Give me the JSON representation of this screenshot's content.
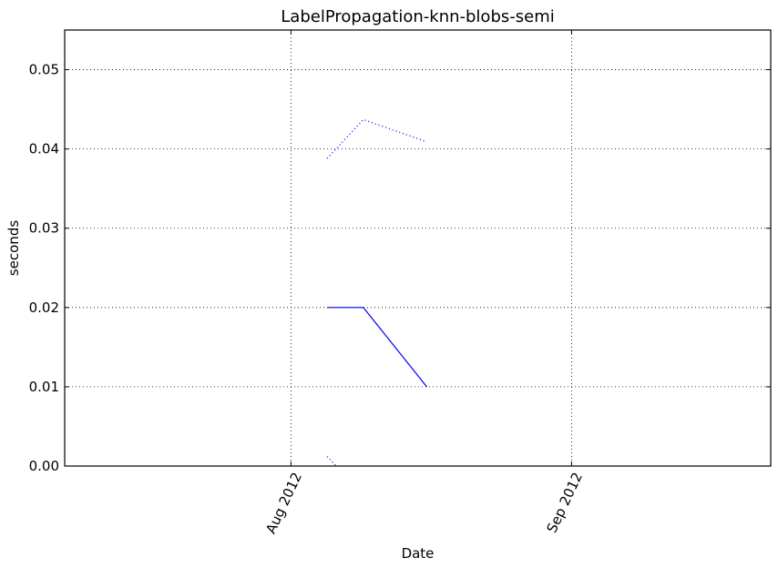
{
  "chart_data": {
    "type": "line",
    "title": "LabelPropagation-knn-blobs-semi",
    "xlabel": "Date",
    "ylabel": "seconds",
    "x_type": "date",
    "xlim": [
      "2012-07-07",
      "2012-09-23"
    ],
    "ylim": [
      0,
      0.055
    ],
    "yticks": [
      0.0,
      0.01,
      0.02,
      0.03,
      0.04,
      0.05
    ],
    "ytick_labels": [
      "0.00",
      "0.01",
      "0.02",
      "0.03",
      "0.04",
      "0.05"
    ],
    "xticks": [
      "2012-08-01",
      "2012-09-01"
    ],
    "xtick_labels": [
      "Aug 2012",
      "Sep 2012"
    ],
    "grid": true,
    "color": "#0000ff",
    "series": [
      {
        "style": "solid",
        "x": [
          "2012-08-05",
          "2012-08-09",
          "2012-08-16"
        ],
        "y": [
          0.02,
          0.02,
          0.01
        ]
      },
      {
        "style": "dotted",
        "x": [
          "2012-08-05",
          "2012-08-09",
          "2012-08-16"
        ],
        "y": [
          0.0388,
          0.0437,
          0.0409
        ]
      },
      {
        "style": "dotted",
        "x": [
          "2012-08-05",
          "2012-08-09",
          "2012-08-16"
        ],
        "y": [
          0.0012,
          -0.0037,
          -0.0009
        ]
      }
    ]
  }
}
